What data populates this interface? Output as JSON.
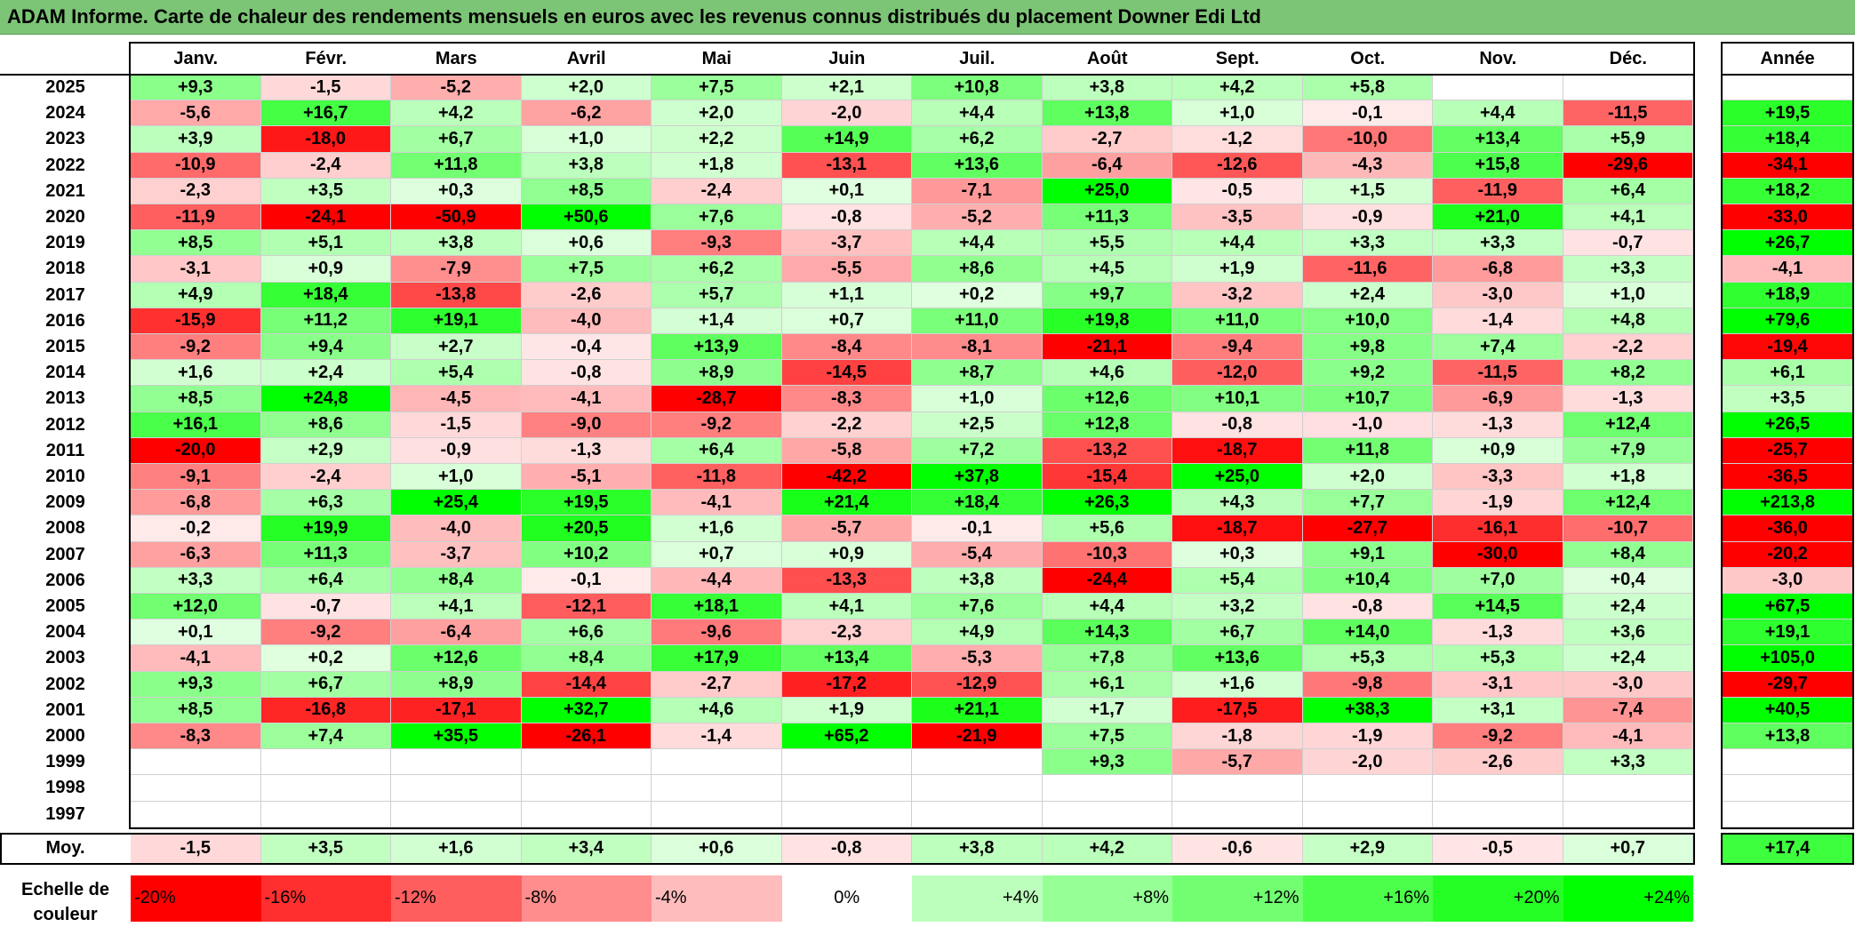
{
  "chart_data": {
    "type": "heatmap",
    "title": "ADAM Informe. Carte de chaleur des rendements mensuels en euros avec les revenus connus distribués du placement Downer Edi Ltd",
    "months": [
      "Janv.",
      "Févr.",
      "Mars",
      "Avril",
      "Mai",
      "Juin",
      "Juil.",
      "Août",
      "Sept.",
      "Oct.",
      "Nov.",
      "Déc."
    ],
    "year_header": "Année",
    "rows": [
      {
        "year": "2025",
        "values": [
          "+9,3",
          "-1,5",
          "-5,2",
          "+2,0",
          "+7,5",
          "+2,1",
          "+10,8",
          "+3,8",
          "+4,2",
          "+5,8",
          "",
          ""
        ],
        "annual": ""
      },
      {
        "year": "2024",
        "values": [
          "-5,6",
          "+16,7",
          "+4,2",
          "-6,2",
          "+2,0",
          "-2,0",
          "+4,4",
          "+13,8",
          "+1,0",
          "-0,1",
          "+4,4",
          "-11,5"
        ],
        "annual": "+19,5"
      },
      {
        "year": "2023",
        "values": [
          "+3,9",
          "-18,0",
          "+6,7",
          "+1,0",
          "+2,2",
          "+14,9",
          "+6,2",
          "-2,7",
          "-1,2",
          "-10,0",
          "+13,4",
          "+5,9"
        ],
        "annual": "+18,4"
      },
      {
        "year": "2022",
        "values": [
          "-10,9",
          "-2,4",
          "+11,8",
          "+3,8",
          "+1,8",
          "-13,1",
          "+13,6",
          "-6,4",
          "-12,6",
          "-4,3",
          "+15,8",
          "-29,6"
        ],
        "annual": "-34,1"
      },
      {
        "year": "2021",
        "values": [
          "-2,3",
          "+3,5",
          "+0,3",
          "+8,5",
          "-2,4",
          "+0,1",
          "-7,1",
          "+25,0",
          "-0,5",
          "+1,5",
          "-11,9",
          "+6,4"
        ],
        "annual": "+18,2"
      },
      {
        "year": "2020",
        "values": [
          "-11,9",
          "-24,1",
          "-50,9",
          "+50,6",
          "+7,6",
          "-0,8",
          "-5,2",
          "+11,3",
          "-3,5",
          "-0,9",
          "+21,0",
          "+4,1"
        ],
        "annual": "-33,0"
      },
      {
        "year": "2019",
        "values": [
          "+8,5",
          "+5,1",
          "+3,8",
          "+0,6",
          "-9,3",
          "-3,7",
          "+4,4",
          "+5,5",
          "+4,4",
          "+3,3",
          "+3,3",
          "-0,7"
        ],
        "annual": "+26,7"
      },
      {
        "year": "2018",
        "values": [
          "-3,1",
          "+0,9",
          "-7,9",
          "+7,5",
          "+6,2",
          "-5,5",
          "+8,6",
          "+4,5",
          "+1,9",
          "-11,6",
          "-6,8",
          "+3,3"
        ],
        "annual": "-4,1"
      },
      {
        "year": "2017",
        "values": [
          "+4,9",
          "+18,4",
          "-13,8",
          "-2,6",
          "+5,7",
          "+1,1",
          "+0,2",
          "+9,7",
          "-3,2",
          "+2,4",
          "-3,0",
          "+1,0"
        ],
        "annual": "+18,9"
      },
      {
        "year": "2016",
        "values": [
          "-15,9",
          "+11,2",
          "+19,1",
          "-4,0",
          "+1,4",
          "+0,7",
          "+11,0",
          "+19,8",
          "+11,0",
          "+10,0",
          "-1,4",
          "+4,8"
        ],
        "annual": "+79,6"
      },
      {
        "year": "2015",
        "values": [
          "-9,2",
          "+9,4",
          "+2,7",
          "-0,4",
          "+13,9",
          "-8,4",
          "-8,1",
          "-21,1",
          "-9,4",
          "+9,8",
          "+7,4",
          "-2,2"
        ],
        "annual": "-19,4"
      },
      {
        "year": "2014",
        "values": [
          "+1,6",
          "+2,4",
          "+5,4",
          "-0,8",
          "+8,9",
          "-14,5",
          "+8,7",
          "+4,6",
          "-12,0",
          "+9,2",
          "-11,5",
          "+8,2"
        ],
        "annual": "+6,1"
      },
      {
        "year": "2013",
        "values": [
          "+8,5",
          "+24,8",
          "-4,5",
          "-4,1",
          "-28,7",
          "-8,3",
          "+1,0",
          "+12,6",
          "+10,1",
          "+10,7",
          "-6,9",
          "-1,3"
        ],
        "annual": "+3,5"
      },
      {
        "year": "2012",
        "values": [
          "+16,1",
          "+8,6",
          "-1,5",
          "-9,0",
          "-9,2",
          "-2,2",
          "+2,5",
          "+12,8",
          "-0,8",
          "-1,0",
          "-1,3",
          "+12,4"
        ],
        "annual": "+26,5"
      },
      {
        "year": "2011",
        "values": [
          "-20,0",
          "+2,9",
          "-0,9",
          "-1,3",
          "+6,4",
          "-5,8",
          "+7,2",
          "-13,2",
          "-18,7",
          "+11,8",
          "+0,9",
          "+7,9"
        ],
        "annual": "-25,7"
      },
      {
        "year": "2010",
        "values": [
          "-9,1",
          "-2,4",
          "+1,0",
          "-5,1",
          "-11,8",
          "-42,2",
          "+37,8",
          "-15,4",
          "+25,0",
          "+2,0",
          "-3,3",
          "+1,8"
        ],
        "annual": "-36,5"
      },
      {
        "year": "2009",
        "values": [
          "-6,8",
          "+6,3",
          "+25,4",
          "+19,5",
          "-4,1",
          "+21,4",
          "+18,4",
          "+26,3",
          "+4,3",
          "+7,7",
          "-1,9",
          "+12,4"
        ],
        "annual": "+213,8"
      },
      {
        "year": "2008",
        "values": [
          "-0,2",
          "+19,9",
          "-4,0",
          "+20,5",
          "+1,6",
          "-5,7",
          "-0,1",
          "+5,6",
          "-18,7",
          "-27,7",
          "-16,1",
          "-10,7"
        ],
        "annual": "-36,0"
      },
      {
        "year": "2007",
        "values": [
          "-6,3",
          "+11,3",
          "-3,7",
          "+10,2",
          "+0,7",
          "+0,9",
          "-5,4",
          "-10,3",
          "+0,3",
          "+9,1",
          "-30,0",
          "+8,4"
        ],
        "annual": "-20,2"
      },
      {
        "year": "2006",
        "values": [
          "+3,3",
          "+6,4",
          "+8,4",
          "-0,1",
          "-4,4",
          "-13,3",
          "+3,8",
          "-24,4",
          "+5,4",
          "+10,4",
          "+7,0",
          "+0,4"
        ],
        "annual": "-3,0"
      },
      {
        "year": "2005",
        "values": [
          "+12,0",
          "-0,7",
          "+4,1",
          "-12,1",
          "+18,1",
          "+4,1",
          "+7,6",
          "+4,4",
          "+3,2",
          "-0,8",
          "+14,5",
          "+2,4"
        ],
        "annual": "+67,5"
      },
      {
        "year": "2004",
        "values": [
          "+0,1",
          "-9,2",
          "-6,4",
          "+6,6",
          "-9,6",
          "-2,3",
          "+4,9",
          "+14,3",
          "+6,7",
          "+14,0",
          "-1,3",
          "+3,6"
        ],
        "annual": "+19,1"
      },
      {
        "year": "2003",
        "values": [
          "-4,1",
          "+0,2",
          "+12,6",
          "+8,4",
          "+17,9",
          "+13,4",
          "-5,3",
          "+7,8",
          "+13,6",
          "+5,3",
          "+5,3",
          "+2,4"
        ],
        "annual": "+105,0"
      },
      {
        "year": "2002",
        "values": [
          "+9,3",
          "+6,7",
          "+8,9",
          "-14,4",
          "-2,7",
          "-17,2",
          "-12,9",
          "+6,1",
          "+1,6",
          "-9,8",
          "-3,1",
          "-3,0"
        ],
        "annual": "-29,7"
      },
      {
        "year": "2001",
        "values": [
          "+8,5",
          "-16,8",
          "-17,1",
          "+32,7",
          "+4,6",
          "+1,9",
          "+21,1",
          "+1,7",
          "-17,5",
          "+38,3",
          "+3,1",
          "-7,4"
        ],
        "annual": "+40,5"
      },
      {
        "year": "2000",
        "values": [
          "-8,3",
          "+7,4",
          "+35,5",
          "-26,1",
          "-1,4",
          "+65,2",
          "-21,9",
          "+7,5",
          "-1,8",
          "-1,9",
          "-9,2",
          "-4,1"
        ],
        "annual": "+13,8"
      },
      {
        "year": "1999",
        "values": [
          "",
          "",
          "",
          "",
          "",
          "",
          "",
          "+9,3",
          "-5,7",
          "-2,0",
          "-2,6",
          "+3,3"
        ],
        "annual": ""
      },
      {
        "year": "1998",
        "values": [
          "",
          "",
          "",
          "",
          "",
          "",
          "",
          "",
          "",
          "",
          "",
          ""
        ],
        "annual": ""
      },
      {
        "year": "1997",
        "values": [
          "",
          "",
          "",
          "",
          "",
          "",
          "",
          "",
          "",
          "",
          "",
          ""
        ],
        "annual": ""
      }
    ],
    "average_row": {
      "label": "Moy.",
      "values": [
        "-1,5",
        "+3,5",
        "+1,6",
        "+3,4",
        "+0,6",
        "-0,8",
        "+3,8",
        "+4,2",
        "-0,6",
        "+2,9",
        "-0,5",
        "+0,7"
      ],
      "annual": "+17,4"
    },
    "legend_label_line1": "Echelle de",
    "legend_label_line2": "couleur",
    "scale": [
      "-20%",
      "-16%",
      "-12%",
      "-8%",
      "-4%",
      "0%",
      "+4%",
      "+8%",
      "+12%",
      "+16%",
      "+20%",
      "+24%"
    ],
    "colors": {
      "negative_max": "#ff0000",
      "neutral": "#ffffff",
      "positive_max": "#00ff00",
      "title_bar": "#7cc576"
    }
  }
}
